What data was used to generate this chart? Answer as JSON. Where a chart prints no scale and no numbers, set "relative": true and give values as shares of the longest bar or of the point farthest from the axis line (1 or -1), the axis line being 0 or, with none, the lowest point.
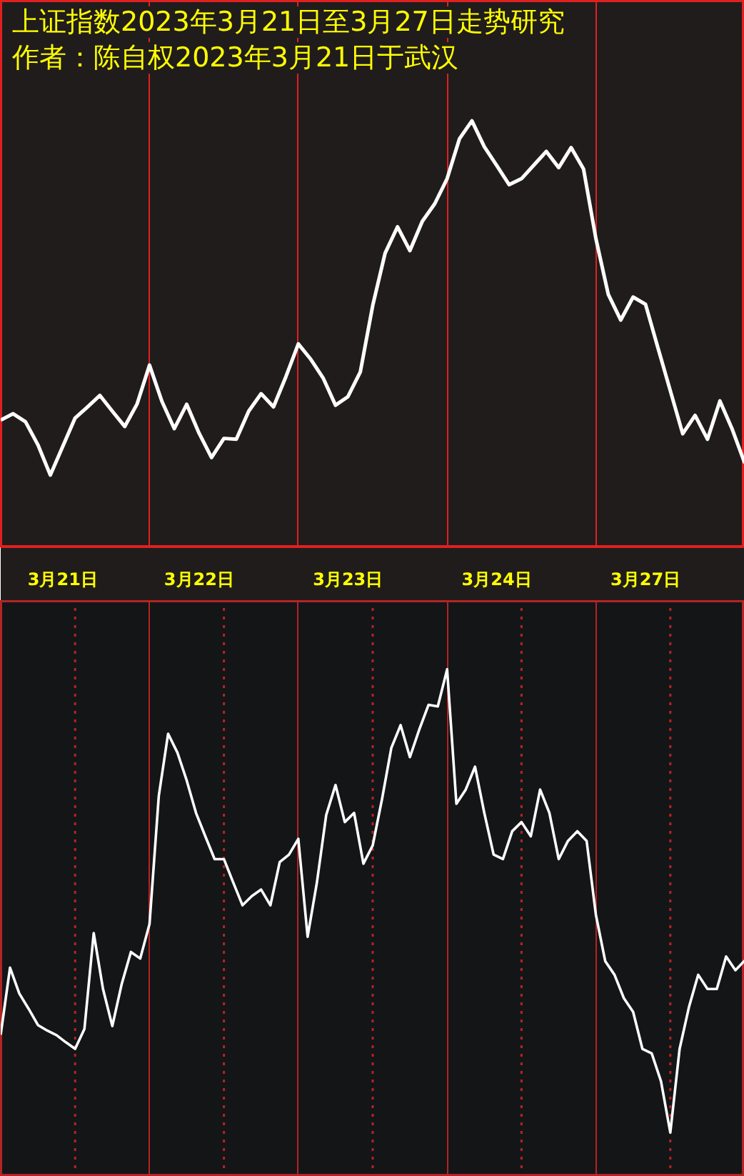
{
  "chart_data": [
    {
      "type": "line",
      "title": "上证指数2023年3月21日至3月27日走势研究",
      "subtitle": "作者：陈自权2023年3月21日于武汉",
      "relative": true,
      "grid": "x",
      "tick_labels": "x",
      "categories": [
        null,
        null,
        null,
        null,
        null,
        "3月21日",
        null,
        null,
        null,
        null,
        null,
        null,
        null,
        null,
        null,
        null,
        "3月22日",
        null,
        null,
        null,
        null,
        null,
        null,
        null,
        null,
        null,
        null,
        null,
        "3月23日",
        null,
        null,
        null,
        null,
        null,
        null,
        null,
        null,
        null,
        null,
        null,
        "3月24日",
        null,
        null,
        null,
        null,
        null,
        null,
        null,
        null,
        null,
        null,
        null,
        "3月27日",
        null,
        null,
        null,
        null,
        null,
        null,
        null,
        null
      ],
      "series": [
        {
          "color": "#ffffff",
          "values": [
            0.297,
            0.312,
            0.293,
            0.239,
            0.168,
            0.235,
            0.302,
            0.328,
            0.355,
            0.318,
            0.282,
            0.335,
            0.426,
            0.341,
            0.277,
            0.334,
            0.266,
            0.209,
            0.254,
            0.252,
            0.318,
            0.359,
            0.328,
            0.399,
            0.476,
            0.44,
            0.396,
            0.332,
            0.352,
            0.41,
            0.566,
            0.689,
            0.751,
            0.695,
            0.764,
            0.805,
            0.864,
            0.958,
            1,
            0.939,
            0.895,
            0.85,
            0.864,
            0.896,
            0.928,
            0.89,
            0.937,
            0.887,
            0.723,
            0.592,
            0.532,
            0.586,
            0.569,
            0.467,
            0.366,
            0.265,
            0.308,
            0.252,
            0.342,
            0.275,
            0.196
          ]
        }
      ]
    },
    {
      "type": "line",
      "relative": true,
      "grid": "x",
      "tick_labels": false,
      "categories": [
        null,
        null,
        null,
        null,
        null,
        null,
        null,
        null,
        null,
        null,
        null,
        null,
        null,
        null,
        null,
        null,
        null,
        null,
        null,
        null,
        null,
        null,
        null,
        null,
        null,
        null,
        null,
        null,
        null,
        null,
        null,
        null,
        null,
        null,
        null,
        null,
        null,
        null,
        null,
        null,
        null,
        null,
        null,
        null,
        null,
        null,
        null,
        null,
        null,
        null,
        null,
        null,
        null,
        null,
        null,
        null,
        null,
        null,
        null,
        null,
        null,
        null,
        null,
        null,
        null,
        null,
        null,
        null,
        null,
        null,
        null,
        null,
        null,
        null,
        null,
        null,
        null,
        null,
        null,
        null,
        null
      ],
      "series": [
        {
          "color": "#ffffff",
          "values": [
            0.28,
            0.412,
            0.361,
            0.331,
            0.299,
            0.288,
            0.279,
            0.265,
            0.252,
            0.291,
            0.48,
            0.37,
            0.297,
            0.379,
            0.443,
            0.43,
            0.498,
            0.751,
            0.873,
            0.836,
            0.781,
            0.717,
            0.671,
            0.626,
            0.626,
            0.58,
            0.535,
            0.553,
            0.566,
            0.535,
            0.62,
            0.635,
            0.666,
            0.473,
            0.58,
            0.713,
            0.772,
            0.699,
            0.717,
            0.617,
            0.653,
            0.744,
            0.845,
            0.89,
            0.827,
            0.881,
            0.93,
            0.927,
            1,
            0.735,
            0.763,
            0.808,
            0.717,
            0.635,
            0.626,
            0.681,
            0.699,
            0.671,
            0.763,
            0.717,
            0.626,
            0.662,
            0.681,
            0.662,
            0.516,
            0.425,
            0.398,
            0.352,
            0.325,
            0.252,
            0.243,
            0.188,
            0.087,
            0.252,
            0.334,
            0.398,
            0.37,
            0.37,
            0.434,
            0.407,
            0.426
          ]
        }
      ]
    }
  ]
}
